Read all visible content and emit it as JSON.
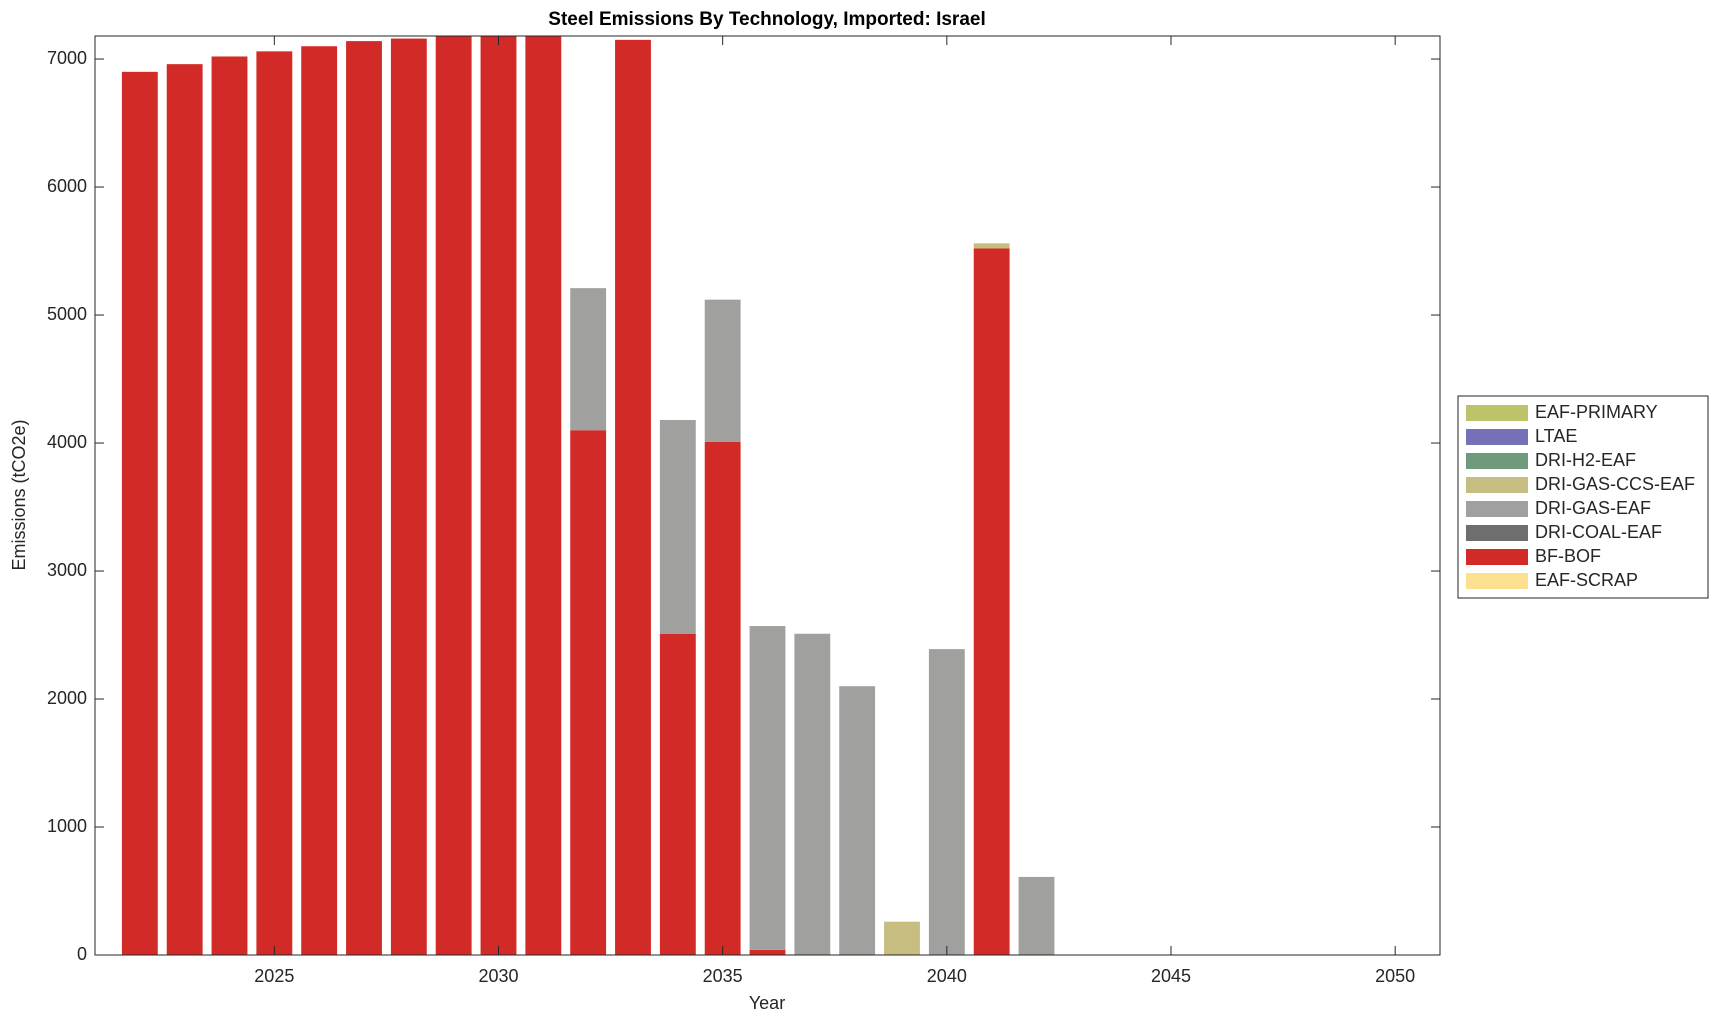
{
  "chart_data": {
    "type": "bar",
    "stacked": true,
    "title": "Steel Emissions By Technology, Imported: Israel",
    "x_label": "Year",
    "y_label": "Emissions (tCO2e)",
    "x": [
      2022,
      2023,
      2024,
      2025,
      2026,
      2027,
      2028,
      2029,
      2030,
      2031,
      2032,
      2033,
      2034,
      2035,
      2036,
      2037,
      2038,
      2039,
      2040,
      2041,
      2042,
      2043,
      2044,
      2045,
      2046,
      2047,
      2048,
      2049,
      2050
    ],
    "xlim": [
      2021,
      2051
    ],
    "xticks": [
      2025,
      2030,
      2035,
      2040,
      2045,
      2050
    ],
    "ylim": [
      0,
      7180
    ],
    "yticks": [
      0,
      1000,
      2000,
      3000,
      4000,
      5000,
      6000,
      7000
    ],
    "grid": false,
    "legend": "east-outside",
    "series": [
      {
        "name": "EAF-PRIMARY",
        "color": "#bcc36b",
        "values": [
          0,
          0,
          0,
          0,
          0,
          0,
          0,
          0,
          0,
          0,
          0,
          0,
          0,
          0,
          0,
          0,
          0,
          0,
          0,
          0,
          0,
          0,
          0,
          0,
          0,
          0,
          0,
          0,
          0
        ]
      },
      {
        "name": "LTAE",
        "color": "#7570b8",
        "values": [
          0,
          0,
          0,
          0,
          0,
          0,
          0,
          0,
          0,
          0,
          0,
          0,
          0,
          0,
          0,
          0,
          0,
          0,
          0,
          0,
          0,
          0,
          0,
          0,
          0,
          0,
          0,
          0,
          0
        ]
      },
      {
        "name": "DRI-H2-EAF",
        "color": "#6f9a7b",
        "values": [
          0,
          0,
          0,
          0,
          0,
          0,
          0,
          0,
          0,
          0,
          0,
          0,
          0,
          0,
          0,
          0,
          0,
          0,
          0,
          0,
          0,
          0,
          0,
          0,
          0,
          0,
          0,
          0,
          0
        ]
      },
      {
        "name": "DRI-GAS-CCS-EAF",
        "color": "#c8bd80",
        "values": [
          0,
          0,
          0,
          0,
          0,
          0,
          0,
          0,
          0,
          0,
          0,
          0,
          0,
          0,
          0,
          0,
          0,
          260,
          0,
          40,
          0,
          0,
          0,
          0,
          0,
          0,
          0,
          0,
          0
        ]
      },
      {
        "name": "DRI-GAS-EAF",
        "color": "#a0a09f",
        "values": [
          0,
          0,
          0,
          0,
          0,
          0,
          0,
          0,
          0,
          0,
          1110,
          0,
          1670,
          1110,
          2530,
          2510,
          2100,
          0,
          2390,
          0,
          610,
          0,
          0,
          0,
          0,
          0,
          0,
          0,
          0
        ]
      },
      {
        "name": "DRI-COAL-EAF",
        "color": "#6e6e6e",
        "values": [
          0,
          0,
          0,
          0,
          0,
          0,
          0,
          0,
          0,
          0,
          0,
          0,
          0,
          0,
          0,
          0,
          0,
          0,
          0,
          0,
          0,
          0,
          0,
          0,
          0,
          0,
          0,
          0,
          0
        ]
      },
      {
        "name": "BF-BOF",
        "color": "#d22a26",
        "values": [
          6900,
          6960,
          7020,
          7060,
          7100,
          7140,
          7160,
          7190,
          7200,
          7190,
          4100,
          7150,
          2510,
          4010,
          40,
          0,
          0,
          0,
          0,
          5520,
          0,
          0,
          0,
          0,
          0,
          0,
          0,
          0,
          0
        ]
      },
      {
        "name": "EAF-SCRAP",
        "color": "#fde191",
        "values": [
          0,
          0,
          0,
          0,
          0,
          0,
          0,
          0,
          0,
          0,
          0,
          0,
          0,
          0,
          0,
          0,
          0,
          0,
          0,
          0,
          0,
          0,
          0,
          0,
          0,
          0,
          0,
          0,
          0
        ]
      }
    ]
  }
}
